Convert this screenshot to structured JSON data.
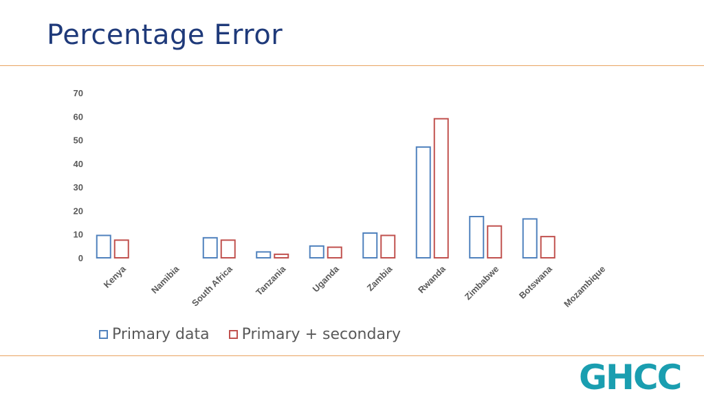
{
  "title": "Percentage Error",
  "logo": {
    "text": "GHCC",
    "color": "#1a9eb0"
  },
  "chart_data": {
    "type": "bar",
    "categories": [
      "Kenya",
      "Namibia",
      "South Africa",
      "Tanzania",
      "Uganda",
      "Zambia",
      "Rwanda",
      "Zimbabwe",
      "Botswana",
      "Mozambique"
    ],
    "series": [
      {
        "name": "Primary data",
        "color": "#4f81bd",
        "values": [
          9.5,
          null,
          8.5,
          2.5,
          5,
          10.5,
          47,
          17.5,
          16.5,
          null
        ]
      },
      {
        "name": "Primary + secondary",
        "color": "#c0504d",
        "values": [
          7.5,
          null,
          7.5,
          1.5,
          4.5,
          9.5,
          59,
          13.5,
          9,
          null
        ]
      }
    ],
    "yticks": [
      "0",
      "10",
      "20",
      "30",
      "40",
      "50",
      "60",
      "70"
    ],
    "ylim": [
      0,
      70
    ],
    "grid": false,
    "legend": "bottom-left"
  }
}
